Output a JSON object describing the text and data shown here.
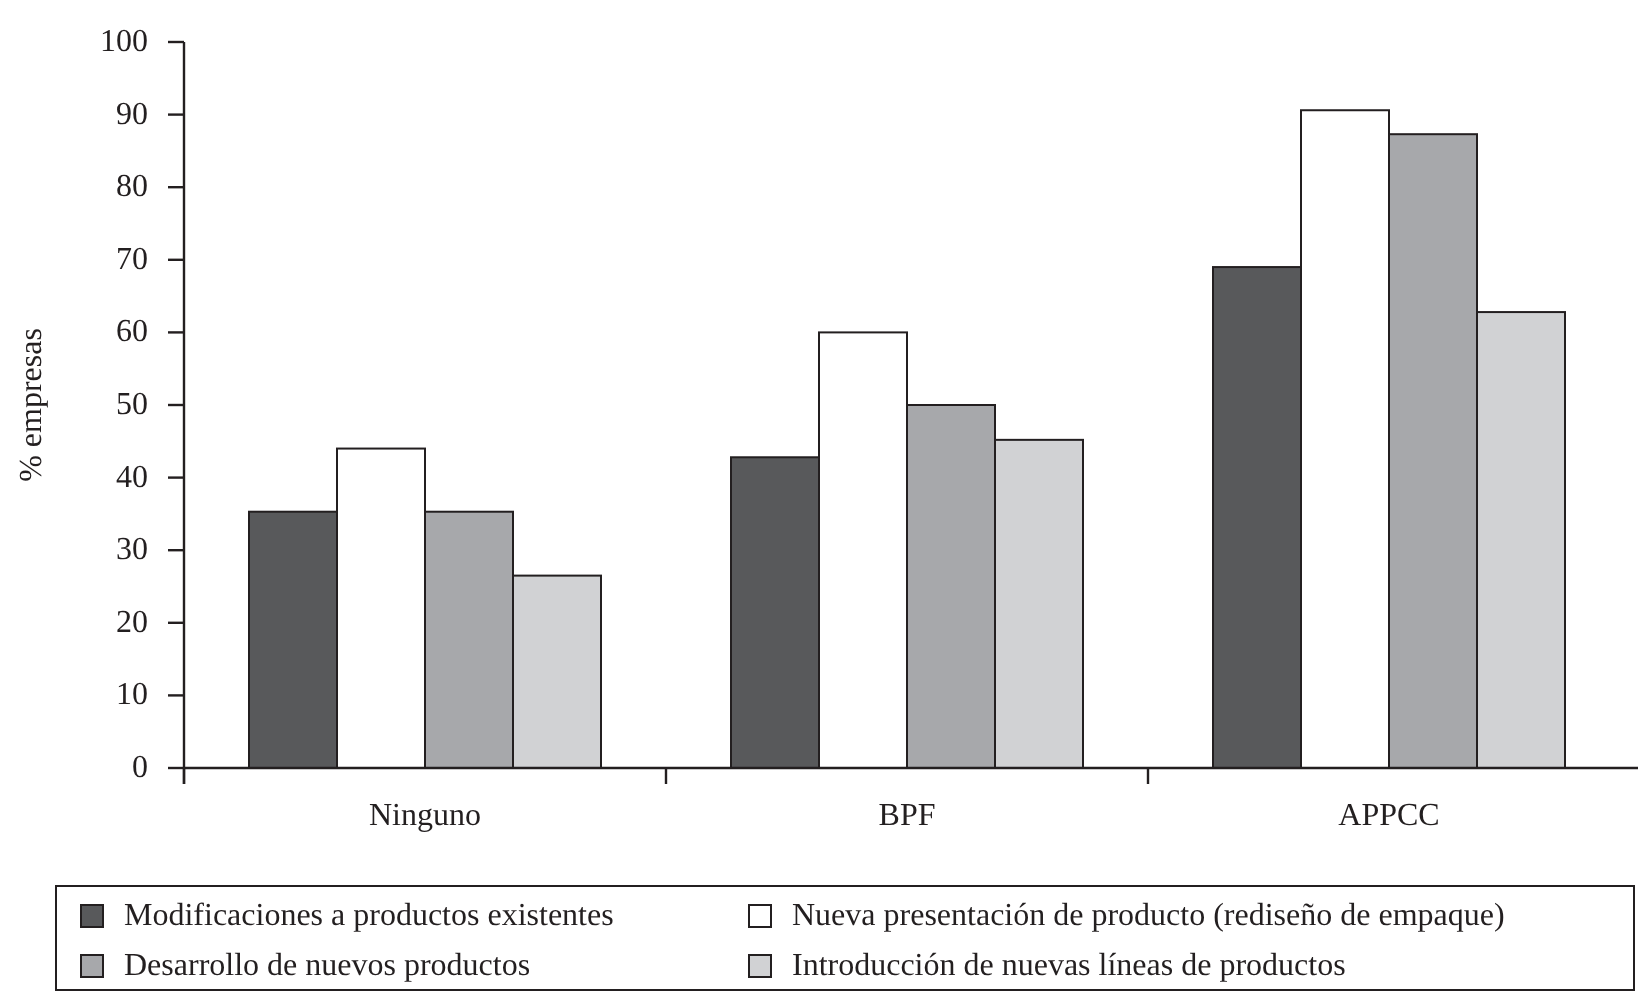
{
  "chart_data": {
    "type": "bar",
    "ylabel": "% empresas",
    "categories": [
      "Ninguno",
      "BPF",
      "APPCC"
    ],
    "series": [
      {
        "name": "Modificaciones a productos existentes",
        "color": "#58595b",
        "values": [
          35.3,
          42.8,
          69
        ]
      },
      {
        "name": "Nueva presentación de producto (rediseño de empaque)",
        "color": "#ffffff",
        "values": [
          44,
          60,
          90.6
        ]
      },
      {
        "name": "Desarrollo de nuevos productos",
        "color": "#a7a8ab",
        "values": [
          35.3,
          50,
          87.3
        ]
      },
      {
        "name": "Introducción de nuevas líneas de productos",
        "color": "#d1d2d4",
        "values": [
          26.5,
          45.2,
          62.8
        ]
      }
    ],
    "ylim": [
      0,
      100
    ],
    "yticks": [
      0,
      10,
      20,
      30,
      40,
      50,
      60,
      70,
      80,
      90,
      100
    ],
    "legend": "bottom",
    "grid": false
  }
}
